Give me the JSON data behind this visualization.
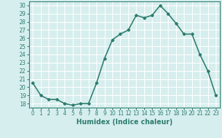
{
  "x": [
    0,
    1,
    2,
    3,
    4,
    5,
    6,
    7,
    8,
    9,
    10,
    11,
    12,
    13,
    14,
    15,
    16,
    17,
    18,
    19,
    20,
    21,
    22,
    23
  ],
  "y": [
    20.5,
    19.0,
    18.5,
    18.5,
    18.0,
    17.8,
    18.0,
    18.0,
    20.5,
    23.5,
    25.8,
    26.5,
    27.0,
    28.8,
    28.5,
    28.8,
    30.0,
    29.0,
    27.8,
    26.5,
    26.5,
    24.0,
    22.0,
    19.0
  ],
  "title": "",
  "xlabel": "Humidex (Indice chaleur)",
  "ylabel": "",
  "ylim": [
    17.5,
    30.5
  ],
  "xlim": [
    -0.5,
    23.5
  ],
  "yticks": [
    18,
    19,
    20,
    21,
    22,
    23,
    24,
    25,
    26,
    27,
    28,
    29,
    30
  ],
  "xticks": [
    0,
    1,
    2,
    3,
    4,
    5,
    6,
    7,
    8,
    9,
    10,
    11,
    12,
    13,
    14,
    15,
    16,
    17,
    18,
    19,
    20,
    21,
    22,
    23
  ],
  "line_color": "#2e7d6e",
  "marker": "D",
  "marker_size": 2.0,
  "bg_color": "#d6eeee",
  "grid_color": "#ffffff",
  "tick_label_fontsize": 5.5,
  "xlabel_fontsize": 7.0,
  "line_width": 1.2
}
